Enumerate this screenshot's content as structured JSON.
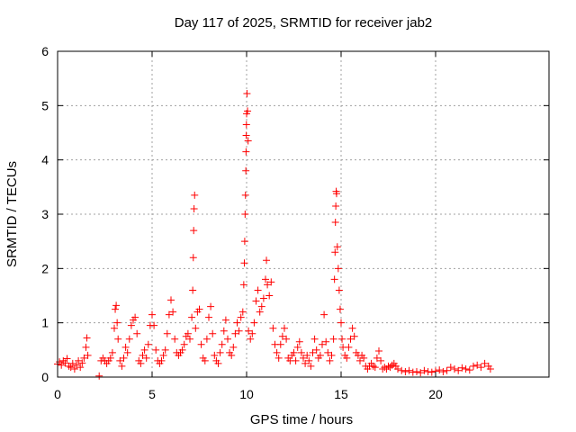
{
  "chart_data": {
    "type": "scatter",
    "title": "Day 117 of 2025, SRMTID for receiver jab2",
    "xlabel": "GPS time / hours",
    "ylabel": "SRMTID / TECUs",
    "xlim": [
      0,
      26
    ],
    "ylim": [
      0,
      6
    ],
    "xticks": [
      0,
      5,
      10,
      15,
      20
    ],
    "yticks": [
      0,
      1,
      2,
      3,
      4,
      5,
      6
    ],
    "grid": true,
    "marker": "+",
    "color": "#ff0000",
    "series": [
      {
        "name": "SRMTID",
        "points": [
          [
            0.0,
            0.24
          ],
          [
            0.1,
            0.28
          ],
          [
            0.2,
            0.22
          ],
          [
            0.3,
            0.3
          ],
          [
            0.4,
            0.26
          ],
          [
            0.5,
            0.34
          ],
          [
            0.6,
            0.2
          ],
          [
            0.7,
            0.18
          ],
          [
            0.8,
            0.25
          ],
          [
            0.9,
            0.15
          ],
          [
            1.0,
            0.22
          ],
          [
            1.1,
            0.3
          ],
          [
            1.2,
            0.18
          ],
          [
            1.3,
            0.26
          ],
          [
            1.4,
            0.35
          ],
          [
            1.5,
            0.55
          ],
          [
            1.55,
            0.72
          ],
          [
            1.6,
            0.4
          ],
          [
            2.2,
            0.02
          ],
          [
            2.3,
            0.3
          ],
          [
            2.4,
            0.35
          ],
          [
            2.5,
            0.3
          ],
          [
            2.6,
            0.25
          ],
          [
            2.7,
            0.3
          ],
          [
            2.8,
            0.35
          ],
          [
            2.9,
            0.45
          ],
          [
            3.0,
            0.9
          ],
          [
            3.05,
            1.25
          ],
          [
            3.1,
            1.32
          ],
          [
            3.15,
            1.0
          ],
          [
            3.2,
            0.7
          ],
          [
            3.3,
            0.3
          ],
          [
            3.4,
            0.2
          ],
          [
            3.5,
            0.35
          ],
          [
            3.6,
            0.55
          ],
          [
            3.7,
            0.45
          ],
          [
            3.8,
            0.7
          ],
          [
            3.9,
            0.95
          ],
          [
            4.0,
            1.05
          ],
          [
            4.1,
            1.1
          ],
          [
            4.2,
            0.8
          ],
          [
            4.3,
            0.3
          ],
          [
            4.4,
            0.25
          ],
          [
            4.5,
            0.4
          ],
          [
            4.6,
            0.5
          ],
          [
            4.7,
            0.35
          ],
          [
            4.8,
            0.6
          ],
          [
            4.9,
            0.95
          ],
          [
            5.0,
            1.15
          ],
          [
            5.1,
            0.95
          ],
          [
            5.2,
            0.5
          ],
          [
            5.3,
            0.3
          ],
          [
            5.4,
            0.25
          ],
          [
            5.5,
            0.3
          ],
          [
            5.6,
            0.4
          ],
          [
            5.7,
            0.5
          ],
          [
            5.8,
            0.8
          ],
          [
            5.9,
            1.15
          ],
          [
            6.0,
            1.42
          ],
          [
            6.1,
            1.2
          ],
          [
            6.2,
            0.7
          ],
          [
            6.3,
            0.45
          ],
          [
            6.4,
            0.4
          ],
          [
            6.5,
            0.45
          ],
          [
            6.6,
            0.5
          ],
          [
            6.7,
            0.6
          ],
          [
            6.8,
            0.75
          ],
          [
            6.9,
            0.8
          ],
          [
            7.0,
            0.7
          ],
          [
            7.1,
            1.1
          ],
          [
            7.15,
            1.6
          ],
          [
            7.18,
            2.2
          ],
          [
            7.2,
            2.7
          ],
          [
            7.22,
            3.1
          ],
          [
            7.25,
            3.35
          ],
          [
            7.3,
            0.9
          ],
          [
            7.4,
            1.2
          ],
          [
            7.5,
            1.25
          ],
          [
            7.6,
            0.6
          ],
          [
            7.7,
            0.35
          ],
          [
            7.8,
            0.3
          ],
          [
            7.9,
            0.7
          ],
          [
            8.0,
            1.1
          ],
          [
            8.1,
            1.3
          ],
          [
            8.2,
            0.8
          ],
          [
            8.3,
            0.4
          ],
          [
            8.4,
            0.3
          ],
          [
            8.5,
            0.25
          ],
          [
            8.6,
            0.45
          ],
          [
            8.7,
            0.6
          ],
          [
            8.8,
            0.85
          ],
          [
            8.9,
            1.05
          ],
          [
            9.0,
            0.7
          ],
          [
            9.1,
            0.45
          ],
          [
            9.2,
            0.4
          ],
          [
            9.3,
            0.55
          ],
          [
            9.4,
            0.8
          ],
          [
            9.5,
            1.0
          ],
          [
            9.6,
            0.85
          ],
          [
            9.7,
            1.1
          ],
          [
            9.8,
            1.2
          ],
          [
            9.85,
            1.7
          ],
          [
            9.88,
            2.1
          ],
          [
            9.9,
            2.5
          ],
          [
            9.92,
            3.0
          ],
          [
            9.94,
            3.35
          ],
          [
            9.96,
            3.8
          ],
          [
            9.97,
            4.15
          ],
          [
            9.98,
            4.45
          ],
          [
            9.99,
            4.65
          ],
          [
            10.0,
            4.85
          ],
          [
            10.02,
            5.22
          ],
          [
            10.05,
            4.9
          ],
          [
            10.08,
            4.35
          ],
          [
            10.1,
            0.85
          ],
          [
            10.2,
            0.7
          ],
          [
            10.3,
            0.8
          ],
          [
            10.4,
            1.0
          ],
          [
            10.5,
            1.4
          ],
          [
            10.6,
            1.6
          ],
          [
            10.7,
            1.2
          ],
          [
            10.8,
            1.3
          ],
          [
            10.9,
            1.45
          ],
          [
            11.0,
            1.8
          ],
          [
            11.05,
            2.15
          ],
          [
            11.1,
            1.7
          ],
          [
            11.2,
            1.5
          ],
          [
            11.3,
            1.75
          ],
          [
            11.4,
            0.9
          ],
          [
            11.5,
            0.6
          ],
          [
            11.6,
            0.45
          ],
          [
            11.7,
            0.35
          ],
          [
            11.8,
            0.6
          ],
          [
            11.9,
            0.75
          ],
          [
            12.0,
            0.9
          ],
          [
            12.1,
            0.7
          ],
          [
            12.2,
            0.35
          ],
          [
            12.3,
            0.3
          ],
          [
            12.4,
            0.4
          ],
          [
            12.5,
            0.45
          ],
          [
            12.6,
            0.3
          ],
          [
            12.7,
            0.55
          ],
          [
            12.8,
            0.65
          ],
          [
            12.9,
            0.45
          ],
          [
            13.0,
            0.35
          ],
          [
            13.1,
            0.25
          ],
          [
            13.2,
            0.4
          ],
          [
            13.3,
            0.3
          ],
          [
            13.4,
            0.2
          ],
          [
            13.5,
            0.45
          ],
          [
            13.6,
            0.7
          ],
          [
            13.7,
            0.5
          ],
          [
            13.8,
            0.35
          ],
          [
            13.9,
            0.4
          ],
          [
            14.0,
            0.6
          ],
          [
            14.1,
            1.15
          ],
          [
            14.2,
            0.65
          ],
          [
            14.3,
            0.45
          ],
          [
            14.4,
            0.3
          ],
          [
            14.5,
            0.4
          ],
          [
            14.6,
            0.7
          ],
          [
            14.65,
            1.8
          ],
          [
            14.68,
            2.3
          ],
          [
            14.7,
            2.85
          ],
          [
            14.72,
            3.15
          ],
          [
            14.74,
            3.42
          ],
          [
            14.76,
            3.38
          ],
          [
            14.8,
            2.4
          ],
          [
            14.85,
            2.0
          ],
          [
            14.9,
            1.6
          ],
          [
            14.95,
            1.25
          ],
          [
            15.0,
            1.0
          ],
          [
            15.05,
            0.7
          ],
          [
            15.1,
            0.55
          ],
          [
            15.2,
            0.4
          ],
          [
            15.3,
            0.35
          ],
          [
            15.4,
            0.55
          ],
          [
            15.5,
            0.7
          ],
          [
            15.6,
            0.9
          ],
          [
            15.7,
            0.75
          ],
          [
            15.8,
            0.45
          ],
          [
            15.9,
            0.4
          ],
          [
            16.0,
            0.3
          ],
          [
            16.1,
            0.4
          ],
          [
            16.2,
            0.35
          ],
          [
            16.3,
            0.2
          ],
          [
            16.4,
            0.15
          ],
          [
            16.5,
            0.2
          ],
          [
            16.6,
            0.25
          ],
          [
            16.7,
            0.2
          ],
          [
            16.8,
            0.18
          ],
          [
            16.9,
            0.35
          ],
          [
            17.0,
            0.48
          ],
          [
            17.1,
            0.3
          ],
          [
            17.2,
            0.15
          ],
          [
            17.3,
            0.18
          ],
          [
            17.4,
            0.15
          ],
          [
            17.5,
            0.2
          ],
          [
            17.6,
            0.18
          ],
          [
            17.7,
            0.22
          ],
          [
            17.8,
            0.25
          ],
          [
            17.9,
            0.2
          ],
          [
            18.0,
            0.15
          ],
          [
            18.2,
            0.12
          ],
          [
            18.4,
            0.1
          ],
          [
            18.6,
            0.12
          ],
          [
            18.8,
            0.09
          ],
          [
            19.0,
            0.1
          ],
          [
            19.2,
            0.08
          ],
          [
            19.4,
            0.12
          ],
          [
            19.6,
            0.1
          ],
          [
            19.8,
            0.09
          ],
          [
            20.0,
            0.11
          ],
          [
            20.2,
            0.13
          ],
          [
            20.4,
            0.1
          ],
          [
            20.6,
            0.12
          ],
          [
            20.8,
            0.18
          ],
          [
            21.0,
            0.15
          ],
          [
            21.2,
            0.12
          ],
          [
            21.4,
            0.17
          ],
          [
            21.6,
            0.15
          ],
          [
            21.8,
            0.13
          ],
          [
            22.0,
            0.2
          ],
          [
            22.2,
            0.22
          ],
          [
            22.4,
            0.18
          ],
          [
            22.6,
            0.25
          ],
          [
            22.8,
            0.2
          ],
          [
            22.9,
            0.15
          ]
        ]
      }
    ]
  }
}
